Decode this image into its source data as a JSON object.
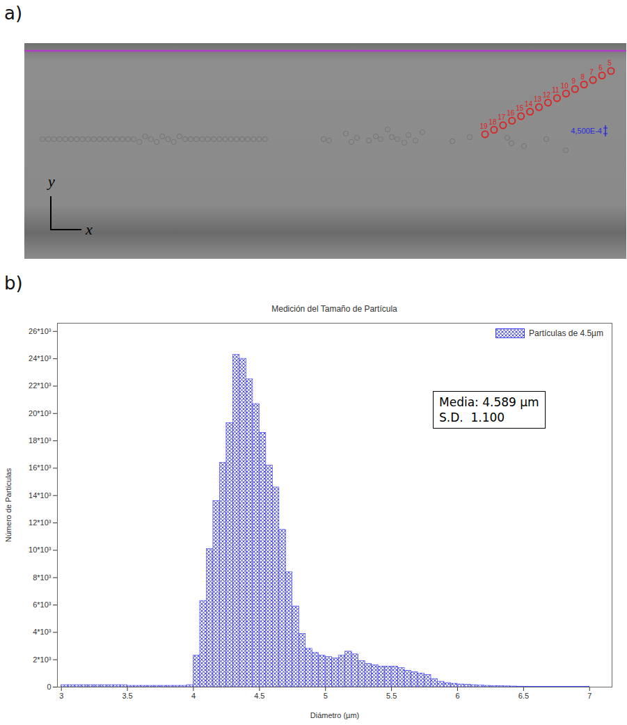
{
  "figure": {
    "panel_labels": [
      "a)",
      "b)"
    ]
  },
  "image": {
    "axis_labels": {
      "x": "x",
      "y": "y"
    },
    "track_labels": [
      "5",
      "6",
      "7",
      "8",
      "9",
      "10",
      "11",
      "12",
      "13",
      "14",
      "15",
      "16",
      "17",
      "18",
      "19"
    ],
    "scale_label": "4,500E-4"
  },
  "chart_data": {
    "type": "histogram",
    "title": "Medición del Tamaño de Partícula",
    "x_label": "Diámetro (µm)",
    "y_label": "Número de Partículas",
    "legend": "top-right",
    "color": "#3a3aff",
    "series_name": "Partículas de 4.5µm",
    "annotations": [
      "Media: 4.589 µm",
      "S.D.  1.100"
    ],
    "bins": [
      3.0,
      3.05,
      3.1,
      3.15,
      3.2,
      3.25,
      3.3,
      3.35,
      3.4,
      3.45,
      3.5,
      3.55,
      3.6,
      3.65,
      3.7,
      3.75,
      3.8,
      3.85,
      3.9,
      3.95,
      4.0,
      4.05,
      4.1,
      4.15,
      4.2,
      4.25,
      4.3,
      4.35,
      4.4,
      4.45,
      4.5,
      4.55,
      4.6,
      4.65,
      4.7,
      4.75,
      4.8,
      4.85,
      4.9,
      4.95,
      5.0,
      5.05,
      5.1,
      5.15,
      5.2,
      5.25,
      5.3,
      5.35,
      5.4,
      5.45,
      5.5,
      5.55,
      5.6,
      5.65,
      5.7,
      5.75,
      5.8,
      5.85,
      5.9,
      5.95,
      6.0,
      6.05,
      6.1,
      6.15,
      6.2,
      6.25,
      6.3,
      6.35,
      6.4,
      6.45,
      6.5,
      6.55,
      6.6,
      6.65,
      6.7,
      6.75,
      6.8,
      6.85,
      6.9,
      6.95,
      7.0
    ],
    "values": [
      150,
      150,
      150,
      150,
      150,
      150,
      150,
      150,
      150,
      150,
      100,
      100,
      100,
      100,
      100,
      100,
      100,
      100,
      100,
      150,
      2300,
      6300,
      10100,
      13600,
      16400,
      19300,
      24300,
      24000,
      22500,
      20700,
      18600,
      16200,
      14600,
      11500,
      8400,
      5900,
      3900,
      2800,
      2500,
      2300,
      2200,
      2100,
      2300,
      2600,
      2400,
      1900,
      1700,
      1600,
      1500,
      1500,
      1500,
      1400,
      1200,
      1100,
      1000,
      900,
      600,
      400,
      300,
      250,
      200,
      180,
      150,
      120,
      100,
      90,
      80,
      60,
      50,
      40,
      20,
      20,
      20,
      20,
      20,
      20,
      20,
      20,
      20,
      20
    ],
    "xlim": [
      2.97,
      7.17
    ],
    "xticks": [
      3,
      3.5,
      4,
      4.5,
      5,
      5.5,
      6,
      6.5,
      7
    ],
    "ylim": [
      0,
      26600
    ],
    "yticks": [
      0,
      {
        "value": 2000,
        "label": "2*10³"
      },
      {
        "value": 4000,
        "label": "4*10³"
      },
      {
        "value": 6000,
        "label": "6*10³"
      },
      {
        "value": 8000,
        "label": "8*10³"
      },
      {
        "value": 10000,
        "label": "10*10³"
      },
      {
        "value": 12000,
        "label": "12*10³"
      },
      {
        "value": 14000,
        "label": "14*10³"
      },
      {
        "value": 16000,
        "label": "16*10³"
      },
      {
        "value": 18000,
        "label": "18*10³"
      },
      {
        "value": 20000,
        "label": "20*10³"
      },
      {
        "value": 22000,
        "label": "22*10³"
      },
      {
        "value": 24000,
        "label": "24*10³"
      },
      {
        "value": 26000,
        "label": "26*10³"
      }
    ],
    "grid": false
  }
}
